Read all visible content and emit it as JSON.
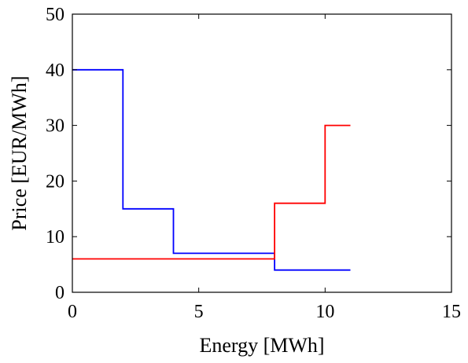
{
  "chart_data": {
    "type": "line",
    "step": true,
    "title": "",
    "xlabel": "Energy [MWh]",
    "ylabel": "Price [EUR/MWh]",
    "xlim": [
      0,
      15
    ],
    "ylim": [
      0,
      50
    ],
    "xticks": [
      0,
      5,
      10,
      15
    ],
    "yticks": [
      0,
      10,
      20,
      30,
      40,
      50
    ],
    "grid": false,
    "legend": "none",
    "series": [
      {
        "color": "#0000ff",
        "points": [
          [
            0,
            40
          ],
          [
            2,
            40
          ],
          [
            2,
            15
          ],
          [
            4,
            15
          ],
          [
            4,
            7
          ],
          [
            8,
            7
          ],
          [
            8,
            4
          ],
          [
            11,
            4
          ]
        ]
      },
      {
        "color": "#ff0000",
        "points": [
          [
            0,
            6
          ],
          [
            8,
            6
          ],
          [
            8,
            16
          ],
          [
            10,
            16
          ],
          [
            10,
            30
          ],
          [
            11,
            30
          ]
        ]
      }
    ]
  }
}
